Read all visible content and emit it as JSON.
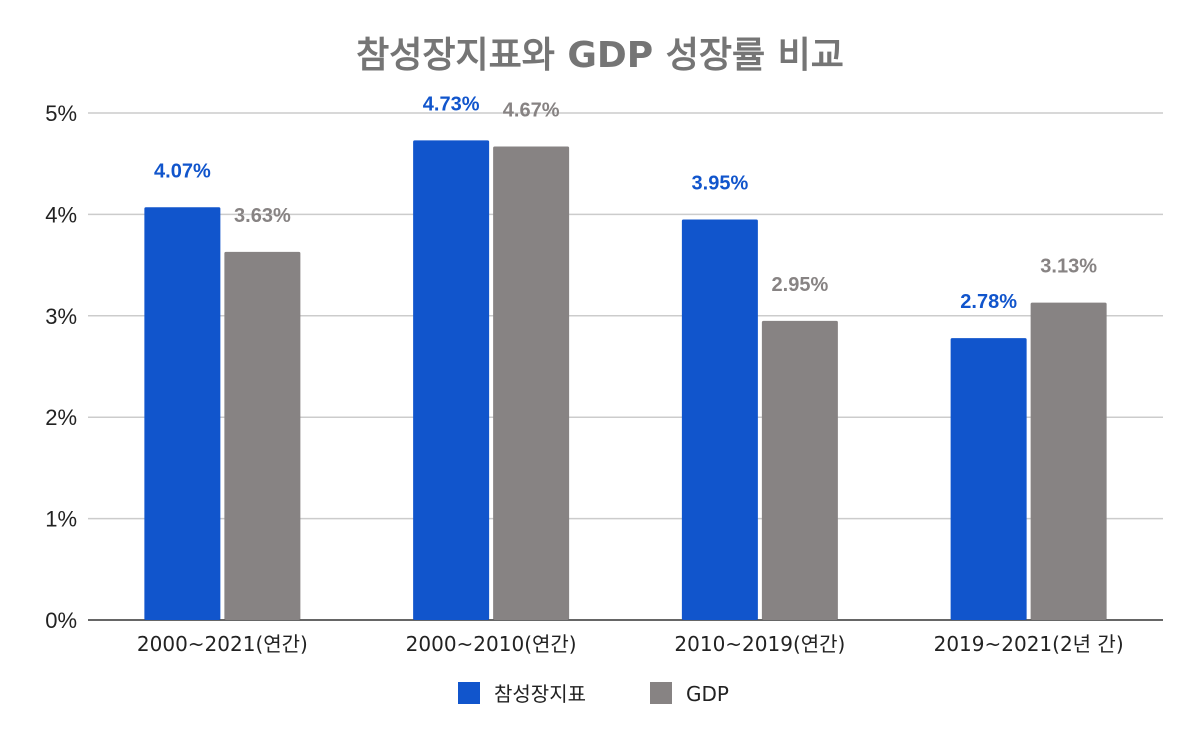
{
  "chart_data": {
    "type": "bar",
    "title": "참성장지표와 GDP 성장률 비교",
    "categories": [
      "2000~2021(연간)",
      "2000~2010(연간)",
      "2010~2019(연간)",
      "2019~2021(2년 간)"
    ],
    "series": [
      {
        "name": "참성장지표",
        "color": "#1155cc",
        "values": [
          4.07,
          4.73,
          3.95,
          2.78
        ],
        "labels": [
          "4.07%",
          "4.73%",
          "3.95%",
          "2.78%"
        ]
      },
      {
        "name": "GDP",
        "color": "#878383",
        "values": [
          3.63,
          4.67,
          2.95,
          3.13
        ],
        "labels": [
          "3.63%",
          "4.67%",
          "2.95%",
          "3.13%"
        ]
      }
    ],
    "yticks": [
      "0%",
      "1%",
      "2%",
      "3%",
      "4%",
      "5%"
    ],
    "ylim": [
      0,
      5
    ],
    "grid": true,
    "legend_position": "bottom"
  }
}
